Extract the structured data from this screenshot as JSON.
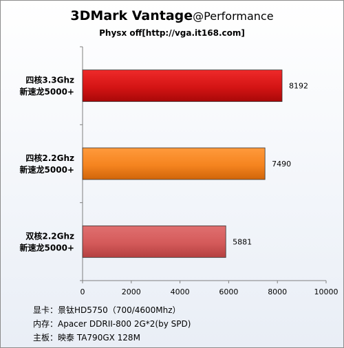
{
  "chart_data": {
    "type": "bar",
    "orientation": "horizontal",
    "title_main": "3DMark Vantage",
    "title_suffix": "@Performance",
    "subtitle": "Physx off[http://vga.it168.com]",
    "categories": [
      [
        "四核3.3Ghz",
        "新速龙5000+"
      ],
      [
        "四核2.2Ghz",
        "新速龙5000+"
      ],
      [
        "双核2.2Ghz",
        "新速龙5000+"
      ]
    ],
    "values": [
      8192,
      7490,
      5881
    ],
    "bar_colors": [
      "#d41414",
      "#f5841f",
      "#d45a5a"
    ],
    "xlim": [
      0,
      10000
    ],
    "xticks": [
      0,
      2000,
      4000,
      6000,
      8000,
      10000
    ],
    "grid": false,
    "legend": "none"
  },
  "notes": [
    "显卡：景钛HD5750（700/4600Mhz）",
    "内存：Apacer DDRII-800 2G*2(by SPD)",
    "主板：映泰 TA790GX 128M"
  ]
}
